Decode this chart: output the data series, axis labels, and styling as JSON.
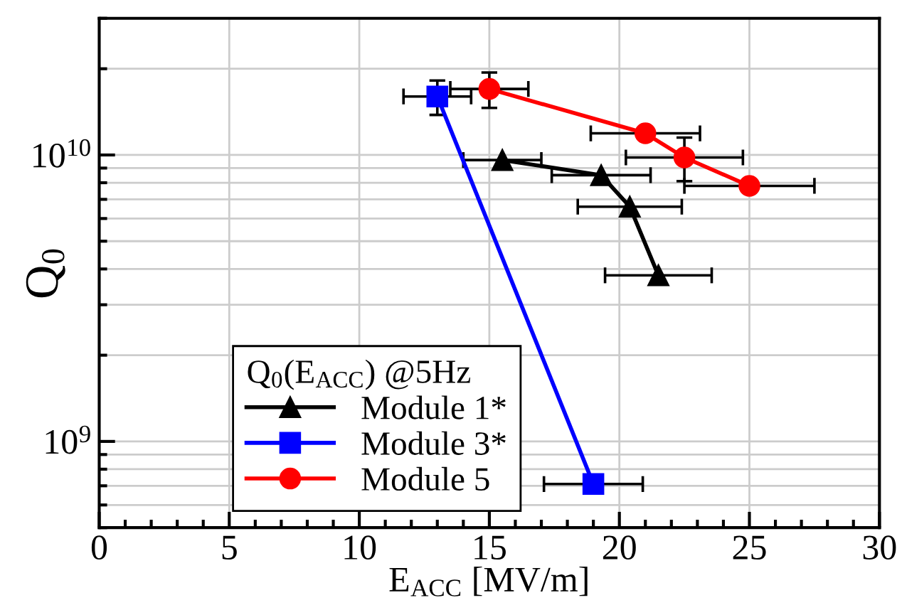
{
  "chart_data": {
    "type": "line",
    "xlabel": "E$_{ACC}$ [MV/m]",
    "ylabel": "Q$_{0}$",
    "legend_title": "Q$_{0}$(E$_{ACC}$) @5Hz",
    "legend": "bottom left",
    "log": "y",
    "grid": true,
    "line_style": "solid",
    "xlim": [
      0,
      30
    ],
    "xticks": [
      0,
      5,
      10,
      15,
      20,
      25,
      30
    ],
    "ylim": [
      500000000.0,
      30000000000.0
    ],
    "yticks": [
      {
        "value": 1000000000.0,
        "label": "10$^{9}$"
      },
      {
        "value": 10000000000.0,
        "label": "10$^{10}$"
      }
    ],
    "series": [
      {
        "name": "Module 1*",
        "color": "#000000",
        "marker": "triangle",
        "x": [
          15.5,
          19.3,
          20.4,
          21.5
        ],
        "values": [
          9600000000.0,
          8500000000.0,
          6600000000.0,
          3800000000.0
        ],
        "xerrors": [
          1.5,
          1.9,
          2.0,
          2.05
        ]
      },
      {
        "name": "Module 3*",
        "color": "#0000ff",
        "marker": "square",
        "x": [
          13,
          19
        ],
        "values": [
          16000000000.0,
          710000000.0
        ],
        "xerrors": [
          1.3,
          1.9
        ],
        "errors": [
          2200000000.0,
          null
        ]
      },
      {
        "name": "Module 5",
        "color": "#ff0000",
        "marker": "circle",
        "x": [
          15,
          21,
          22.5,
          25
        ],
        "values": [
          17000000000.0,
          11900000000.0,
          9800000000.0,
          7800000000.0
        ],
        "xerrors": [
          1.5,
          2.1,
          2.25,
          2.5
        ],
        "errors": [
          2400000000.0,
          null,
          1700000000.0,
          null
        ]
      }
    ]
  }
}
